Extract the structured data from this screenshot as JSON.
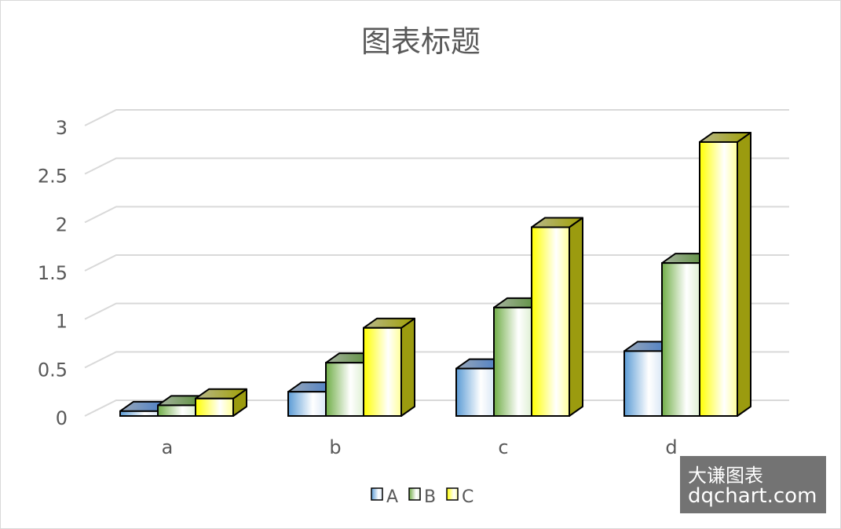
{
  "chart_data": {
    "type": "bar",
    "title": "图表标题",
    "categories": [
      "a",
      "b",
      "c",
      "d"
    ],
    "series": [
      {
        "name": "A",
        "values": [
          0.05,
          0.25,
          0.49,
          0.67
        ],
        "color": "#5B9BD5"
      },
      {
        "name": "B",
        "values": [
          0.11,
          0.55,
          1.12,
          1.58
        ],
        "color": "#70AD47"
      },
      {
        "name": "C",
        "values": [
          0.18,
          0.91,
          1.95,
          2.83
        ],
        "color": "#FFFF00"
      }
    ],
    "yticks": [
      "0",
      "0.5",
      "1",
      "1.5",
      "2",
      "2.5",
      "3"
    ],
    "ylim": [
      0,
      3
    ],
    "grid": true,
    "legend": "bottom",
    "style": "3d-column"
  },
  "watermark": {
    "line1": "大谦图表",
    "line2": "dqchart.com"
  }
}
